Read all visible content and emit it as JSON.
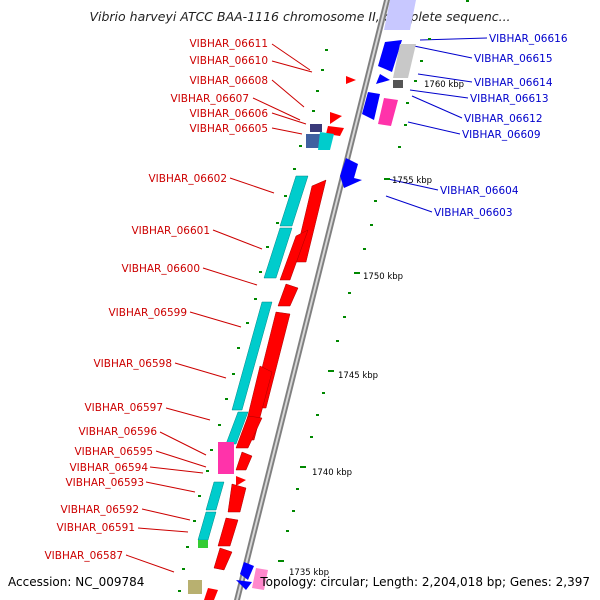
{
  "title": "Vibrio harveyi ATCC BAA-1116 chromosome II, complete sequenc...",
  "footer": {
    "accession": "Accession: NC_009784",
    "topology": "Topology: circular; Length: 2,204,018 bp; Genes: 2,397"
  },
  "colors": {
    "forward_cds": "#ff0000",
    "reverse_cds": "#0000ff",
    "forward_label": "#cc0000",
    "reverse_label": "#0000cc",
    "orf": "#00cccc",
    "tick": "#008800",
    "backbone": "#888888"
  },
  "kbp_marks": [
    "1760 kbp",
    "1755 kbp",
    "1750 kbp",
    "1745 kbp",
    "1740 kbp",
    "1735 kbp"
  ],
  "left_labels": [
    "VIBHAR_06611",
    "VIBHAR_06610",
    "VIBHAR_06608",
    "VIBHAR_06607",
    "VIBHAR_06606",
    "VIBHAR_06605",
    "VIBHAR_06602",
    "VIBHAR_06601",
    "VIBHAR_06600",
    "VIBHAR_06599",
    "VIBHAR_06598",
    "VIBHAR_06597",
    "VIBHAR_06596",
    "VIBHAR_06595",
    "VIBHAR_06594",
    "VIBHAR_06593",
    "VIBHAR_06592",
    "VIBHAR_06591",
    "VIBHAR_06587"
  ],
  "right_labels": [
    "VIBHAR_06616",
    "VIBHAR_06615",
    "VIBHAR_06614",
    "VIBHAR_06613",
    "VIBHAR_06612",
    "VIBHAR_06609",
    "VIBHAR_06604",
    "VIBHAR_06603"
  ]
}
